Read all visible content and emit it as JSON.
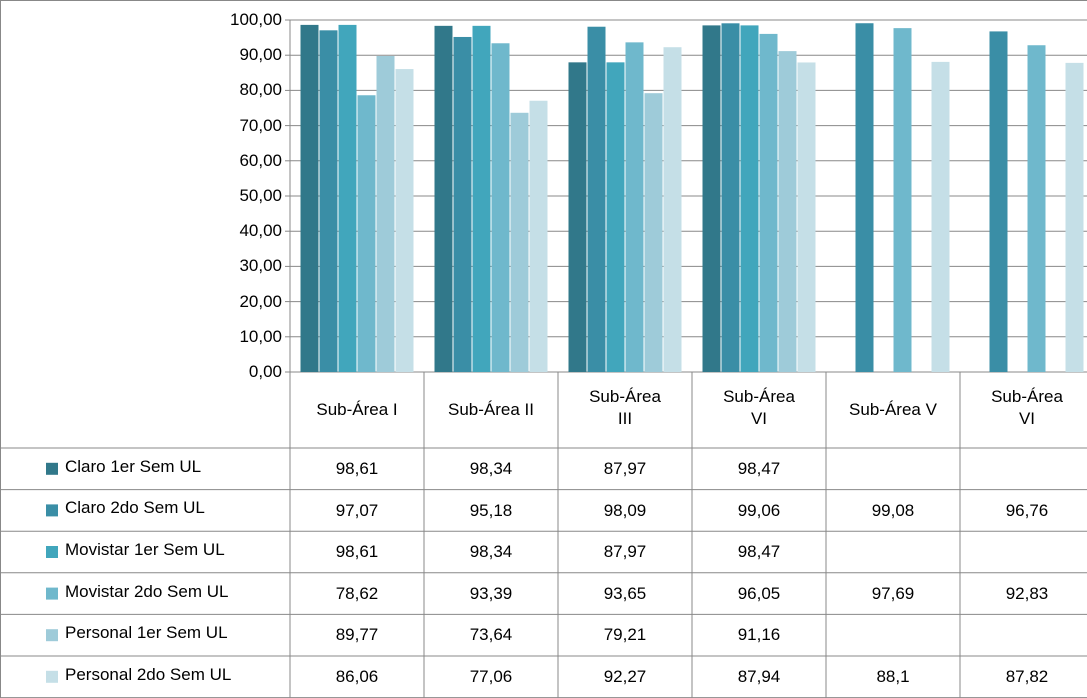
{
  "chart_data": {
    "type": "bar",
    "categories": [
      "Sub-Área I",
      "Sub-Área II",
      "Sub-Área III",
      "Sub-Área VI",
      "Sub-Área V",
      "Sub-Área VI"
    ],
    "ylim": [
      0,
      100
    ],
    "yticks": [
      {
        "value": 0,
        "label": "0,00"
      },
      {
        "value": 10,
        "label": "10,00"
      },
      {
        "value": 20,
        "label": "20,00"
      },
      {
        "value": 30,
        "label": "30,00"
      },
      {
        "value": 40,
        "label": "40,00"
      },
      {
        "value": 50,
        "label": "50,00"
      },
      {
        "value": 60,
        "label": "60,00"
      },
      {
        "value": 70,
        "label": "70,00"
      },
      {
        "value": 80,
        "label": "80,00"
      },
      {
        "value": 90,
        "label": "90,00"
      },
      {
        "value": 100,
        "label": "100,00"
      }
    ],
    "grid": true,
    "series": [
      {
        "name": "Claro 1er Sem UL",
        "color": "#31788a",
        "values": [
          98.61,
          98.34,
          87.97,
          98.47,
          null,
          null
        ],
        "value_labels": [
          "98,61",
          "98,34",
          "87,97",
          "98,47",
          null,
          null
        ]
      },
      {
        "name": "Claro 2do Sem UL",
        "color": "#3a8ea6",
        "values": [
          97.07,
          95.18,
          98.09,
          99.06,
          99.08,
          96.76
        ],
        "value_labels": [
          "97,07",
          "95,18",
          "98,09",
          "99,06",
          "99,08",
          "96,76"
        ]
      },
      {
        "name": "Movistar 1er Sem UL",
        "color": "#41a6bc",
        "values": [
          98.61,
          98.34,
          87.97,
          98.47,
          null,
          null
        ],
        "value_labels": [
          "98,61",
          "98,34",
          "87,97",
          "98,47",
          null,
          null
        ]
      },
      {
        "name": "Movistar 2do Sem UL",
        "color": "#6fb8cc",
        "values": [
          78.62,
          93.39,
          93.65,
          96.05,
          97.69,
          92.83
        ],
        "value_labels": [
          "78,62",
          "93,39",
          "93,65",
          "96,05",
          "97,69",
          "92,83"
        ]
      },
      {
        "name": "Personal 1er Sem UL",
        "color": "#9ecbd9",
        "values": [
          89.77,
          73.64,
          79.21,
          91.16,
          null,
          null
        ],
        "value_labels": [
          "89,77",
          "73,64",
          "79,21",
          "91,16",
          null,
          null
        ]
      },
      {
        "name": "Personal 2do Sem UL",
        "color": "#c5dfe7",
        "values": [
          86.06,
          77.06,
          92.27,
          87.94,
          88.1,
          87.82
        ],
        "value_labels": [
          "86,06",
          "77,06",
          "92,27",
          "87,94",
          "88,1",
          "87,82"
        ]
      }
    ]
  }
}
